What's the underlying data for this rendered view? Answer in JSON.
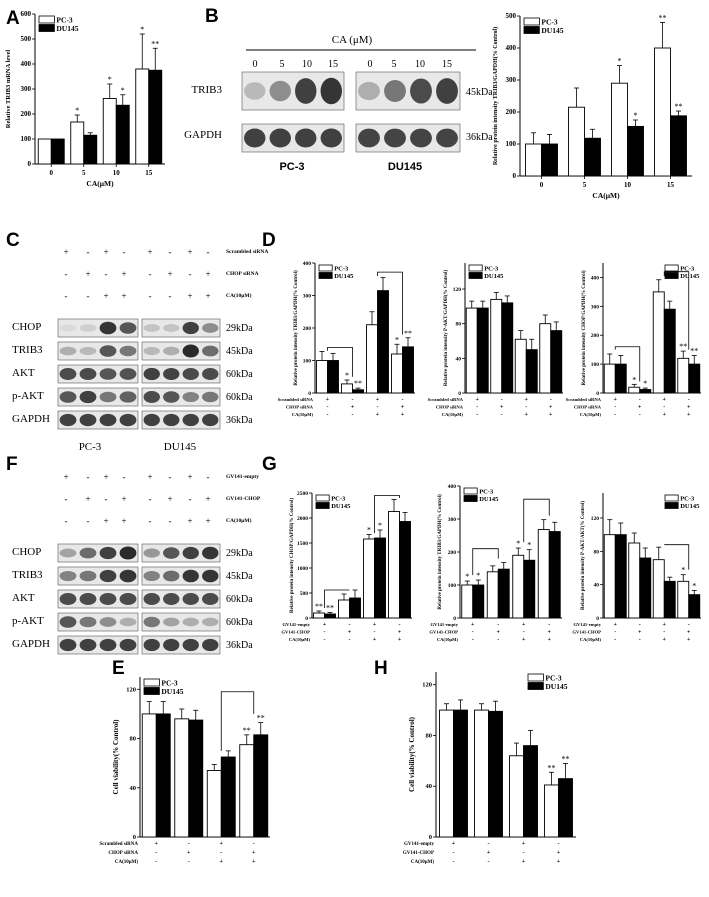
{
  "figure": {
    "panels": {
      "A": {
        "letter": "A"
      },
      "B": {
        "letter": "B",
        "treatment_title": "CA (μM)",
        "doses": [
          "0",
          "5",
          "10",
          "15",
          "0",
          "5",
          "10",
          "15"
        ],
        "bands": [
          "TRIB3",
          "GAPDH"
        ],
        "mw": [
          "45kDa",
          "36kDa"
        ],
        "cell_lines": [
          "PC-3",
          "DU145"
        ]
      },
      "C": {
        "letter": "C",
        "conditions": [
          "Scrambled siRNA",
          "CHOP siRNA",
          "CA(10μM)"
        ],
        "signs": [
          [
            "+",
            "-",
            "+",
            "-",
            "+",
            "-",
            "+",
            "-"
          ],
          [
            "-",
            "+",
            "-",
            "+",
            "-",
            "+",
            "-",
            "+"
          ],
          [
            "-",
            "-",
            "+",
            "+",
            "-",
            "-",
            "+",
            "+"
          ]
        ],
        "bands": [
          "CHOP",
          "TRIB3",
          "AKT",
          "p-AKT",
          "GAPDH"
        ],
        "mw": [
          "29kDa",
          "45kDa",
          "60kDa",
          "60kDa",
          "36kDa"
        ],
        "cell_lines": [
          "PC-3",
          "DU145"
        ]
      },
      "D": {
        "letter": "D"
      },
      "E": {
        "letter": "E"
      },
      "F": {
        "letter": "F",
        "conditions": [
          "GV141-empty",
          "GV141-CHOP",
          "CA(10μM)"
        ],
        "signs": [
          [
            "+",
            "-",
            "+",
            "-",
            "+",
            "-",
            "+",
            "-"
          ],
          [
            "-",
            "+",
            "-",
            "+",
            "-",
            "+",
            "-",
            "+"
          ],
          [
            "-",
            "-",
            "+",
            "+",
            "-",
            "-",
            "+",
            "+"
          ]
        ],
        "bands": [
          "CHOP",
          "TRIB3",
          "AKT",
          "p-AKT",
          "GAPDH"
        ],
        "mw": [
          "29kDa",
          "45kDa",
          "60kDa",
          "60kDa",
          "36kDa"
        ]
      },
      "G": {
        "letter": "G"
      },
      "H": {
        "letter": "H"
      }
    },
    "legend": {
      "pc3": "PC-3",
      "du145": "DU145"
    },
    "colors": {
      "pc3": "#ffffff",
      "du145": "#000000"
    }
  },
  "chart_data": [
    {
      "id": "A",
      "type": "bar",
      "ylabel": "Relative TRIB3 mRNA level",
      "xlabel": "CA(μM)",
      "categories": [
        "0",
        "5",
        "10",
        "15"
      ],
      "ylim": [
        0,
        600
      ],
      "yticks": [
        0,
        100,
        200,
        300,
        400,
        500,
        600
      ],
      "series": [
        {
          "name": "PC-3",
          "values": [
            100,
            168,
            262,
            380
          ],
          "err": [
            0,
            28,
            58,
            140
          ]
        },
        {
          "name": "DU145",
          "values": [
            100,
            115,
            235,
            375
          ],
          "err": [
            0,
            10,
            42,
            88
          ]
        }
      ],
      "annotations": [
        [
          "",
          "*",
          "*",
          "*"
        ],
        [
          "",
          "",
          "*",
          "**"
        ]
      ],
      "legend": "top-left"
    },
    {
      "id": "B",
      "type": "bar",
      "ylabel": "Relative protein intensity TRIB3/GAPDH(% Control)",
      "xlabel": "CA(μM)",
      "categories": [
        "0",
        "5",
        "10",
        "15"
      ],
      "ylim": [
        0,
        500
      ],
      "yticks": [
        0,
        100,
        200,
        300,
        400,
        500
      ],
      "series": [
        {
          "name": "PC-3",
          "values": [
            100,
            215,
            290,
            400
          ],
          "err": [
            35,
            60,
            55,
            80
          ]
        },
        {
          "name": "DU145",
          "values": [
            100,
            118,
            155,
            188
          ],
          "err": [
            30,
            28,
            20,
            15
          ]
        }
      ],
      "annotations": [
        [
          "",
          "",
          "*",
          "**"
        ],
        [
          "",
          "",
          "*",
          "**"
        ]
      ],
      "legend": "top-left"
    },
    {
      "id": "D1",
      "type": "bar",
      "ylabel": "Relative protein intensity TRIB3/GAPDH(% Control)",
      "groups": 4,
      "ylim": [
        0,
        400
      ],
      "yticks": [
        0,
        100,
        200,
        300,
        400
      ],
      "series": [
        {
          "name": "PC-3",
          "values": [
            100,
            28,
            210,
            120
          ],
          "err": [
            28,
            12,
            40,
            30
          ]
        },
        {
          "name": "DU145",
          "values": [
            100,
            10,
            315,
            142
          ],
          "err": [
            22,
            5,
            40,
            28
          ]
        }
      ],
      "annotations": [
        [
          "",
          "*",
          "",
          "*"
        ],
        [
          "",
          "**",
          "",
          "**"
        ]
      ],
      "row_labels": [
        "Scrambled siRNA",
        "CHOP siRNA",
        "CA(10μM)"
      ],
      "row_signs": [
        [
          "+",
          "-",
          "+",
          "-"
        ],
        [
          "-",
          "+",
          "-",
          "+"
        ],
        [
          "-",
          "-",
          "+",
          "+"
        ]
      ],
      "legend": "top-left"
    },
    {
      "id": "D2",
      "type": "bar",
      "ylabel": "Relative protein intensity P-AKT/GAPDH(% Control)",
      "groups": 4,
      "ylim": [
        0,
        150
      ],
      "yticks": [
        0,
        40,
        80,
        120
      ],
      "series": [
        {
          "name": "PC-3",
          "values": [
            98,
            108,
            62,
            80
          ],
          "err": [
            8,
            8,
            10,
            10
          ]
        },
        {
          "name": "DU145",
          "values": [
            98,
            104,
            50,
            72
          ],
          "err": [
            8,
            8,
            12,
            10
          ]
        }
      ],
      "annotations": [
        [
          "",
          "",
          "",
          ""
        ],
        [
          "",
          "",
          "",
          ""
        ]
      ],
      "row_labels": [
        "Scrambled siRNA",
        "CHOP siRNA",
        "CA(10μM)"
      ],
      "row_signs": [
        [
          "+",
          "-",
          "+",
          "-"
        ],
        [
          "-",
          "+",
          "-",
          "+"
        ],
        [
          "-",
          "-",
          "+",
          "+"
        ]
      ],
      "legend": "top-left"
    },
    {
      "id": "D3",
      "type": "bar",
      "ylabel": "Relative protein intensity CHOP/GAPDH(% Control)",
      "groups": 4,
      "ylim": [
        0,
        450
      ],
      "yticks": [
        0,
        100,
        200,
        300,
        400
      ],
      "series": [
        {
          "name": "PC-3",
          "values": [
            100,
            20,
            350,
            120
          ],
          "err": [
            35,
            10,
            42,
            25
          ]
        },
        {
          "name": "DU145",
          "values": [
            100,
            12,
            290,
            100
          ],
          "err": [
            30,
            5,
            28,
            30
          ]
        }
      ],
      "annotations": [
        [
          "",
          "*",
          "",
          "**"
        ],
        [
          "",
          "*",
          "",
          "**"
        ]
      ],
      "row_labels": [
        "Scrambled siRNA",
        "CHOP siRNA",
        "CA(10μM)"
      ],
      "row_signs": [
        [
          "+",
          "-",
          "+",
          "-"
        ],
        [
          "-",
          "+",
          "-",
          "+"
        ],
        [
          "-",
          "-",
          "+",
          "+"
        ]
      ],
      "legend": "top-right"
    },
    {
      "id": "G1",
      "type": "bar",
      "ylabel": "Relative protein intensity CHOP/GAPDH(% Control)",
      "groups": 4,
      "ylim": [
        0,
        2500
      ],
      "yticks": [
        0,
        500,
        1000,
        1500,
        2000,
        2500
      ],
      "series": [
        {
          "name": "PC-3",
          "values": [
            100,
            360,
            1580,
            2130
          ],
          "err": [
            40,
            120,
            90,
            240
          ]
        },
        {
          "name": "DU145",
          "values": [
            80,
            400,
            1600,
            1930
          ],
          "err": [
            30,
            160,
            160,
            180
          ]
        }
      ],
      "annotations": [
        [
          "**",
          "",
          "*",
          ""
        ],
        [
          "**",
          "",
          "*",
          ""
        ]
      ],
      "row_labels": [
        "GV141-empty",
        "GV141-CHOP",
        "CA(10μM)"
      ],
      "row_signs": [
        [
          "+",
          "-",
          "+",
          "-"
        ],
        [
          "-",
          "+",
          "-",
          "+"
        ],
        [
          "-",
          "-",
          "+",
          "+"
        ]
      ],
      "legend": "top-left"
    },
    {
      "id": "G2",
      "type": "bar",
      "ylabel": "Relative protein intensity TRIB3/GAPDH(% Control)",
      "groups": 4,
      "ylim": [
        0,
        400
      ],
      "yticks": [
        0,
        100,
        200,
        300,
        400
      ],
      "series": [
        {
          "name": "PC-3",
          "values": [
            100,
            140,
            190,
            268
          ],
          "err": [
            12,
            18,
            22,
            30
          ]
        },
        {
          "name": "DU145",
          "values": [
            100,
            148,
            175,
            262
          ],
          "err": [
            15,
            20,
            32,
            28
          ]
        }
      ],
      "annotations": [
        [
          "*",
          "",
          "*",
          ""
        ],
        [
          "*",
          "",
          "*",
          ""
        ]
      ],
      "row_labels": [
        "GV141-empty",
        "GV141-CHOP",
        "CA(10μM)"
      ],
      "row_signs": [
        [
          "+",
          "-",
          "+",
          "-"
        ],
        [
          "-",
          "+",
          "-",
          "+"
        ],
        [
          "-",
          "-",
          "+",
          "+"
        ]
      ],
      "legend": "top-left"
    },
    {
      "id": "G3",
      "type": "bar",
      "ylabel": "Relative protein intensity P-AKT/AKT(% Control)",
      "groups": 4,
      "ylim": [
        0,
        150
      ],
      "yticks": [
        0,
        40,
        80,
        120
      ],
      "series": [
        {
          "name": "PC-3",
          "values": [
            100,
            90,
            70,
            44
          ],
          "err": [
            18,
            12,
            15,
            8
          ]
        },
        {
          "name": "DU145",
          "values": [
            100,
            72,
            44,
            28
          ],
          "err": [
            14,
            12,
            5,
            5
          ]
        }
      ],
      "annotations": [
        [
          "",
          "",
          "",
          "*"
        ],
        [
          "",
          "",
          "",
          "*"
        ]
      ],
      "row_labels": [
        "GV141-empty",
        "GV141-CHOP",
        "CA(10μM)"
      ],
      "row_signs": [
        [
          "+",
          "-",
          "+",
          "-"
        ],
        [
          "-",
          "+",
          "-",
          "+"
        ],
        [
          "-",
          "-",
          "+",
          "+"
        ]
      ],
      "legend": "top-right"
    },
    {
      "id": "E",
      "type": "bar",
      "ylabel": "Cell viability(% Control)",
      "groups": 4,
      "ylim": [
        0,
        130
      ],
      "yticks": [
        0,
        40,
        80,
        120
      ],
      "series": [
        {
          "name": "PC-3",
          "values": [
            100,
            96,
            54,
            75
          ],
          "err": [
            10,
            8,
            5,
            8
          ]
        },
        {
          "name": "DU145",
          "values": [
            100,
            95,
            65,
            83
          ],
          "err": [
            10,
            8,
            5,
            10
          ]
        }
      ],
      "annotations": [
        [
          "",
          "",
          "",
          "**"
        ],
        [
          "",
          "",
          "",
          "**"
        ]
      ],
      "row_labels": [
        "Scrambled siRNA",
        "CHOP siRNA",
        "CA(10μM)"
      ],
      "row_signs": [
        [
          "+",
          "-",
          "+",
          "-"
        ],
        [
          "-",
          "+",
          "-",
          "+"
        ],
        [
          "-",
          "-",
          "+",
          "+"
        ]
      ],
      "legend": "top-left"
    },
    {
      "id": "H",
      "type": "bar",
      "ylabel": "Cell viability(% Control)",
      "groups": 4,
      "ylim": [
        0,
        130
      ],
      "yticks": [
        0,
        40,
        80,
        120
      ],
      "series": [
        {
          "name": "PC-3",
          "values": [
            100,
            100,
            64,
            41
          ],
          "err": [
            5,
            5,
            10,
            10
          ]
        },
        {
          "name": "DU145",
          "values": [
            100,
            99,
            72,
            46
          ],
          "err": [
            8,
            8,
            12,
            12
          ]
        }
      ],
      "annotations": [
        [
          "",
          "",
          "",
          "**"
        ],
        [
          "",
          "",
          "",
          "**"
        ]
      ],
      "row_labels": [
        "GV141-empty",
        "GV141-CHOP",
        "CA(10μM)"
      ],
      "row_signs": [
        [
          "+",
          "-",
          "+",
          "-"
        ],
        [
          "-",
          "+",
          "-",
          "+"
        ],
        [
          "-",
          "-",
          "+",
          "+"
        ]
      ],
      "legend": "top-right"
    }
  ]
}
